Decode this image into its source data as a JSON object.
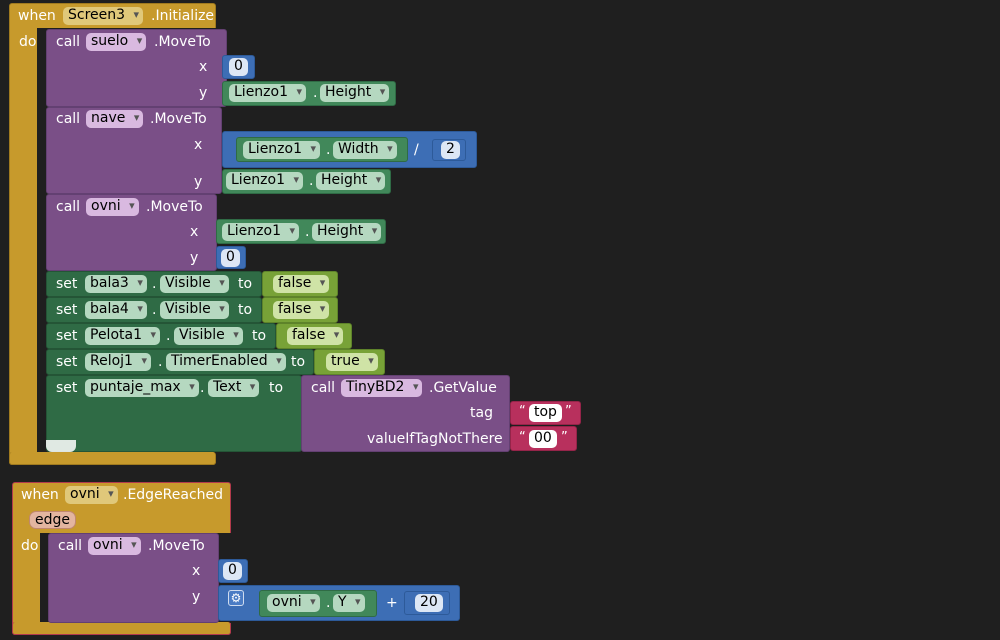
{
  "kw": {
    "when": "when",
    "do": "do",
    "call": "call",
    "set": "set",
    "to": "to",
    "x": "x",
    "y": "y",
    "dot": "."
  },
  "block1": {
    "component": "Screen3",
    "event": ".Initialize",
    "moveto1": {
      "component": "suelo",
      "method": ".MoveTo",
      "x": "0",
      "y_comp": "Lienzo1",
      "y_prop": "Height"
    },
    "moveto2": {
      "component": "nave",
      "method": ".MoveTo",
      "x_comp": "Lienzo1",
      "x_prop": "Width",
      "x_op": "/",
      "x_div": "2",
      "y_comp": "Lienzo1",
      "y_prop": "Height"
    },
    "moveto3": {
      "component": "ovni",
      "method": ".MoveTo",
      "x_comp": "Lienzo1",
      "x_prop": "Height",
      "y": "0"
    },
    "sets": [
      {
        "comp": "bala3",
        "prop": "Visible",
        "val": "false"
      },
      {
        "comp": "bala4",
        "prop": "Visible",
        "val": "false"
      },
      {
        "comp": "Pelota1",
        "prop": "Visible",
        "val": "false"
      },
      {
        "comp": "Reloj1",
        "prop": "TimerEnabled",
        "val": "true"
      }
    ],
    "set5": {
      "comp": "puntaje_max",
      "prop": "Text",
      "call_comp": "TinyBD2",
      "call_method": ".GetValue",
      "tag_label": "tag",
      "tag_val": "top",
      "def_label": "valueIfTagNotThere",
      "def_val": "00"
    }
  },
  "block2": {
    "component": "ovni",
    "event": ".EdgeReached",
    "param": "edge",
    "moveto": {
      "component": "ovni",
      "method": ".MoveTo",
      "x": "0",
      "y_comp": "ovni",
      "y_prop": "Y",
      "op": "+",
      "addend": "20"
    }
  },
  "colors": {
    "event": "#c79a2c",
    "procedure": "#7a4f87",
    "setter": "#2f6b45",
    "component": "#41885a",
    "math": "#3d6eb5",
    "logic": "#78a237",
    "text": "#b8305d",
    "background": "#1f1f1f"
  }
}
